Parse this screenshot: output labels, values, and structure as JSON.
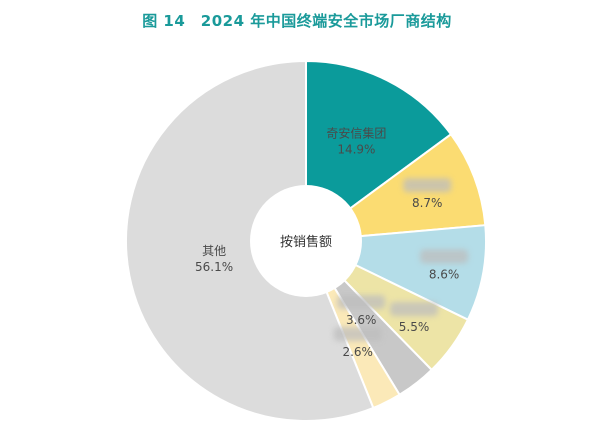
{
  "chart_data": {
    "type": "pie",
    "title": "图 14　2024 年中国终端安全市场厂商结构",
    "center_label": "按销售额",
    "slices": [
      {
        "name": "奇安信集团",
        "value": 14.9,
        "value_label": "14.9%",
        "color": "#0b9b9b"
      },
      {
        "name": "",
        "value": 8.7,
        "value_label": "8.7%",
        "color": "#fbdc72"
      },
      {
        "name": "",
        "value": 8.6,
        "value_label": "8.6%",
        "color": "#b4dde8"
      },
      {
        "name": "",
        "value": 5.5,
        "value_label": "5.5%",
        "color": "#ede4a6"
      },
      {
        "name": "",
        "value": 3.6,
        "value_label": "3.6%",
        "color": "#c8c8c8"
      },
      {
        "name": "",
        "value": 2.6,
        "value_label": "2.6%",
        "color": "#fbe9b8"
      },
      {
        "name": "其他",
        "value": 56.1,
        "value_label": "56.1%",
        "color": "#dcdcdc"
      }
    ]
  }
}
